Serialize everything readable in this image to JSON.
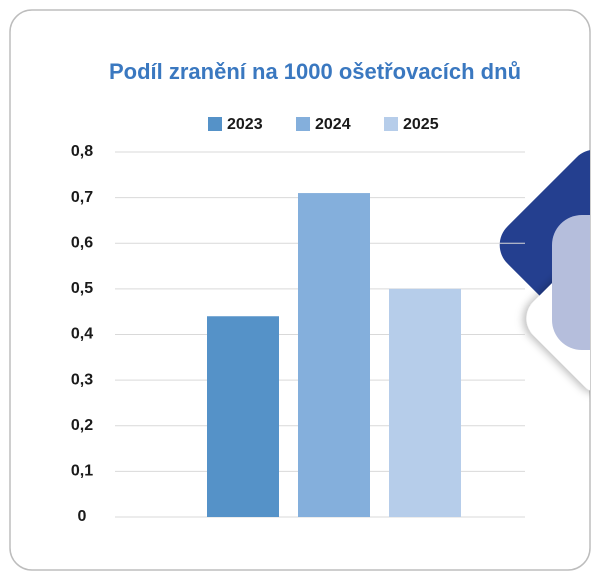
{
  "chart_data": {
    "type": "bar",
    "title": "Podíl zranění na 1000 ošetřovacích dnů",
    "categories": [
      null
    ],
    "series": [
      {
        "name": "2023",
        "color": "#5592c8",
        "values": [
          0.44
        ]
      },
      {
        "name": "2024",
        "color": "#84afdc",
        "values": [
          0.71
        ]
      },
      {
        "name": "2025",
        "color": "#b6cdea",
        "values": [
          0.5
        ]
      }
    ],
    "ylim": [
      0,
      0.8
    ],
    "yticks": [
      0,
      {
        "value": 0.1,
        "label": "0,1"
      },
      {
        "value": 0.2,
        "label": "0,2"
      },
      {
        "value": 0.3,
        "label": "0,3"
      },
      {
        "value": 0.4,
        "label": "0,4"
      },
      {
        "value": 0.5,
        "label": "0,5"
      },
      {
        "value": 0.6,
        "label": "0,6"
      },
      {
        "value": 0.7,
        "label": "0,7"
      },
      {
        "value": 0.8,
        "label": "0,8"
      }
    ],
    "grid": true,
    "legend": "top"
  }
}
